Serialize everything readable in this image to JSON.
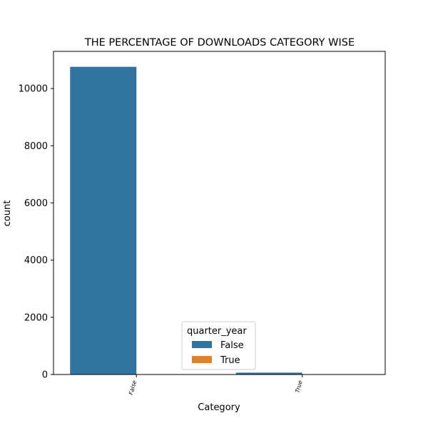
{
  "chart_data": {
    "type": "bar",
    "title": "THE PERCENTAGE OF DOWNLOADS CATEGORY WISE",
    "xlabel": "Category",
    "ylabel": "count",
    "categories": [
      "False",
      "True"
    ],
    "series": [
      {
        "name": "False",
        "color": "#3274a1",
        "values": [
          10760,
          65
        ]
      },
      {
        "name": "True",
        "color": "#e1812c",
        "values": [
          0,
          0
        ]
      }
    ],
    "yticks": [
      0,
      2000,
      4000,
      6000,
      8000,
      10000
    ],
    "ylim": [
      0,
      11300
    ],
    "grid": false,
    "legend": {
      "title": "quarter_year",
      "placement": "lower-center"
    }
  }
}
